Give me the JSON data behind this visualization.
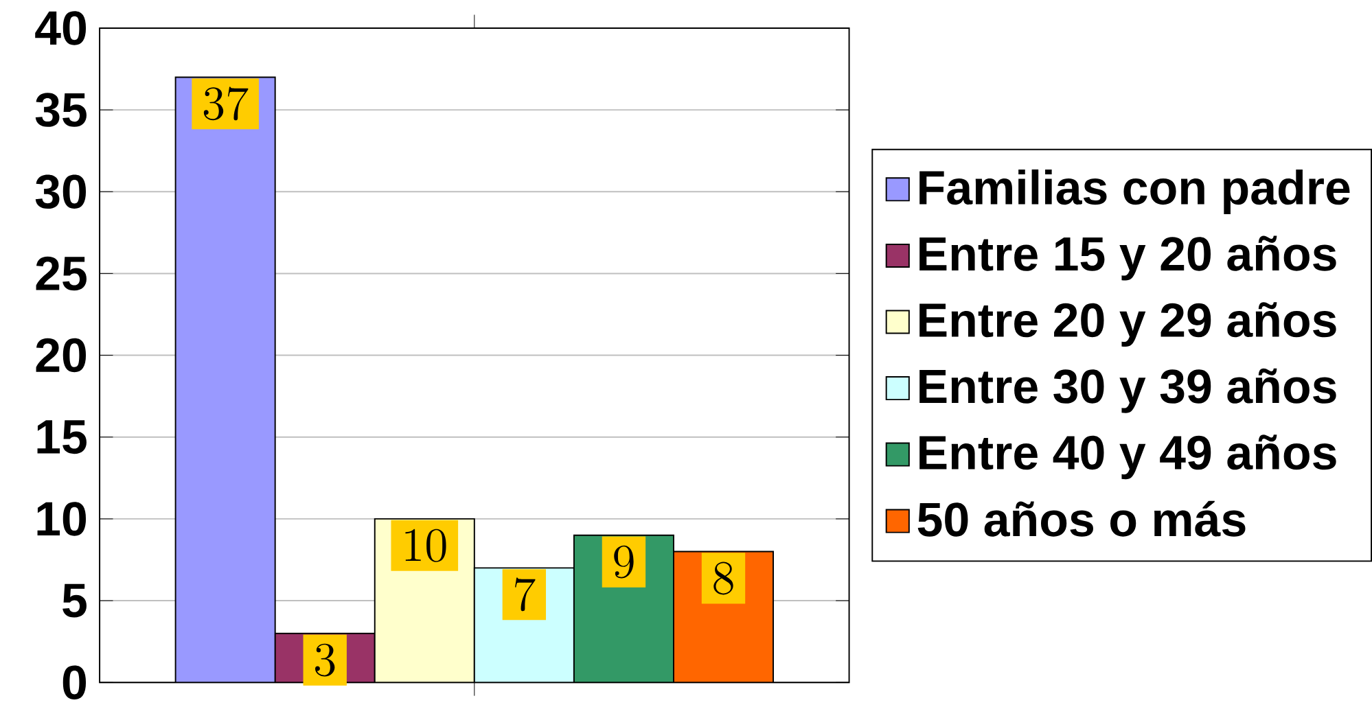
{
  "chart_data": {
    "type": "bar",
    "categories": [
      null
    ],
    "series": [
      {
        "name": "Familias con padre",
        "color": "#9999ff",
        "values": [
          37
        ]
      },
      {
        "name": "Entre 15 y 20 años",
        "color": "#993366",
        "values": [
          3
        ]
      },
      {
        "name": "Entre 20 y 29 años",
        "color": "#ffffcc",
        "values": [
          10
        ]
      },
      {
        "name": "Entre 30 y 39 años",
        "color": "#ccffff",
        "values": [
          7
        ]
      },
      {
        "name": "Entre 40 y 49 años",
        "color": "#339966",
        "values": [
          9
        ]
      },
      {
        "name": "50 años o más",
        "color": "#ff6600",
        "values": [
          8
        ]
      }
    ],
    "ylim": [
      0,
      40
    ],
    "yticks": [
      0,
      5,
      10,
      15,
      20,
      25,
      30,
      35,
      40
    ],
    "grid": "y",
    "legend": "right",
    "data_labels": true
  }
}
